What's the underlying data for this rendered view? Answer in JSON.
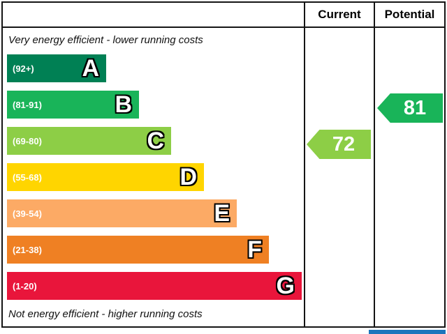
{
  "header": {
    "current": "Current",
    "potential": "Potential"
  },
  "captions": {
    "top": "Very energy efficient - lower running costs",
    "bottom": "Not energy efficient - higher running costs"
  },
  "bands": [
    {
      "letter": "A",
      "range": "(92+)",
      "color": "#008054"
    },
    {
      "letter": "B",
      "range": "(81-91)",
      "color": "#19b459"
    },
    {
      "letter": "C",
      "range": "(69-80)",
      "color": "#8dce46"
    },
    {
      "letter": "D",
      "range": "(55-68)",
      "color": "#ffd500"
    },
    {
      "letter": "E",
      "range": "(39-54)",
      "color": "#fcaa65"
    },
    {
      "letter": "F",
      "range": "(21-38)",
      "color": "#ef8023"
    },
    {
      "letter": "G",
      "range": "(1-20)",
      "color": "#e9153b"
    }
  ],
  "ratings": {
    "current": {
      "value": "72",
      "color": "#8dce46"
    },
    "potential": {
      "value": "81",
      "color": "#19b459"
    }
  },
  "chart_data": {
    "type": "bar",
    "title": "",
    "categories": [
      "A",
      "B",
      "C",
      "D",
      "E",
      "F",
      "G"
    ],
    "band_ranges": [
      "92+",
      "81-91",
      "69-80",
      "55-68",
      "39-54",
      "21-38",
      "1-20"
    ],
    "band_colors": [
      "#008054",
      "#19b459",
      "#8dce46",
      "#ffd500",
      "#fcaa65",
      "#ef8023",
      "#e9153b"
    ],
    "series": [
      {
        "name": "Current",
        "value": 72,
        "band": "C"
      },
      {
        "name": "Potential",
        "value": 81,
        "band": "B"
      }
    ],
    "legend_position": "none",
    "grid": false
  }
}
